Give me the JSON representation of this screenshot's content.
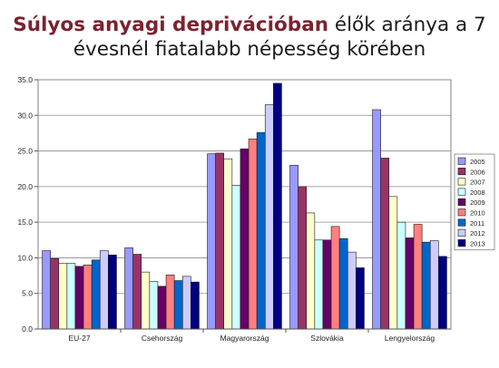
{
  "title": {
    "highlight": "Súlyos anyagi deprivációban",
    "rest_line1": " élők aránya a 7",
    "line2": "évesnél fiatalabb népesség körében"
  },
  "chart_data": {
    "type": "bar",
    "title": "Súlyos anyagi deprivációban élők aránya a 7 évesnél fiatalabb népesség körében",
    "categories": [
      "EU-27",
      "Csehország",
      "Magyarország",
      "Szlovákia",
      "Lengyelország"
    ],
    "ylim": [
      0,
      35
    ],
    "yticks": [
      "0.0",
      "5.0",
      "10.0",
      "15.0",
      "20.0",
      "25.0",
      "30.0",
      "35.0"
    ],
    "grid": true,
    "legend_position": "right",
    "series": [
      {
        "name": "2005",
        "color": "#9999ff",
        "values": [
          11.0,
          11.4,
          24.6,
          23.0,
          30.8
        ]
      },
      {
        "name": "2006",
        "color": "#993366",
        "values": [
          9.9,
          10.5,
          24.7,
          20.0,
          24.0
        ]
      },
      {
        "name": "2007",
        "color": "#ffffcc",
        "values": [
          9.2,
          8.0,
          23.9,
          16.3,
          18.6
        ]
      },
      {
        "name": "2008",
        "color": "#ccffff",
        "values": [
          9.2,
          6.7,
          20.2,
          12.5,
          15.0
        ]
      },
      {
        "name": "2009",
        "color": "#660066",
        "values": [
          8.8,
          6.0,
          25.3,
          12.5,
          12.8
        ]
      },
      {
        "name": "2010",
        "color": "#ff8080",
        "values": [
          9.0,
          7.6,
          26.7,
          14.4,
          14.7
        ]
      },
      {
        "name": "2011",
        "color": "#0066cc",
        "values": [
          9.7,
          6.8,
          27.6,
          12.7,
          12.2
        ]
      },
      {
        "name": "2012",
        "color": "#ccccff",
        "values": [
          11.0,
          7.4,
          31.5,
          10.8,
          12.4
        ]
      },
      {
        "name": "2013",
        "color": "#000080",
        "values": [
          10.4,
          6.6,
          34.5,
          8.6,
          10.2
        ]
      }
    ]
  }
}
